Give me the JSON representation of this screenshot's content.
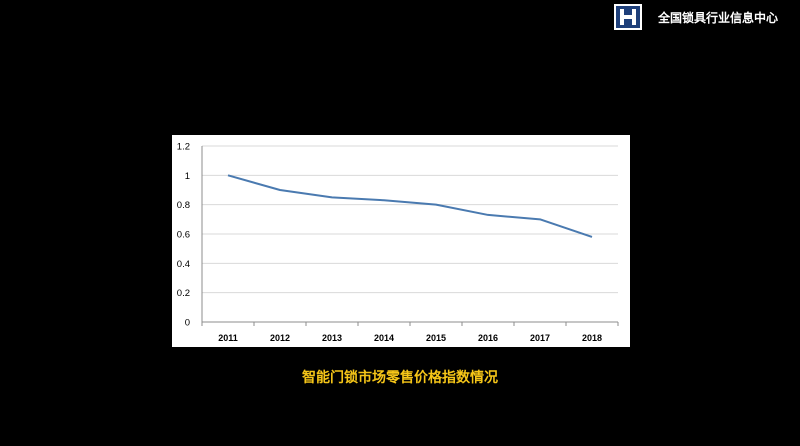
{
  "header": {
    "logo_text": "H",
    "org_name": "全国锁具行业信息中心"
  },
  "caption": "智能门锁市场零售价格指数情况",
  "colors": {
    "background": "#000000",
    "caption": "#f5c518",
    "line": "#4a7ab0",
    "logo_bg": "#1e3f7a"
  },
  "chart_data": {
    "type": "line",
    "categories": [
      "2011",
      "2012",
      "2013",
      "2014",
      "2015",
      "2016",
      "2017",
      "2018"
    ],
    "series": [
      {
        "values": [
          1.0,
          0.9,
          0.85,
          0.83,
          0.8,
          0.73,
          0.7,
          0.58
        ]
      }
    ],
    "y_ticks": [
      "0",
      "0.2",
      "0.4",
      "0.6",
      "0.8",
      "1",
      "1.2"
    ],
    "ylim": [
      0,
      1.2
    ],
    "grid": true,
    "legend": false
  }
}
